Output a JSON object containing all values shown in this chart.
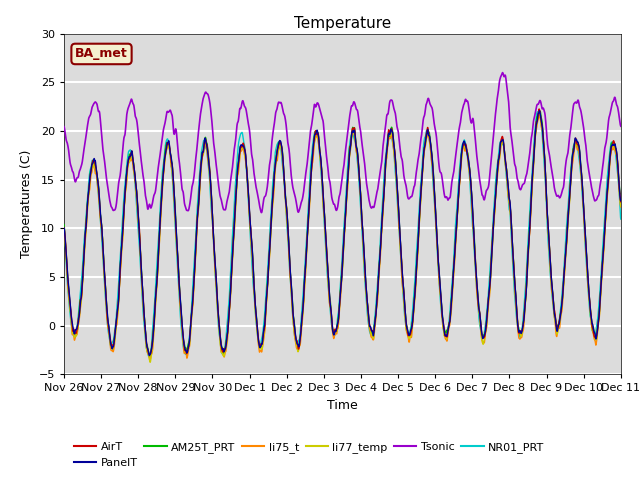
{
  "title": "Temperature",
  "xlabel": "Time",
  "ylabel": "Temperatures (C)",
  "ylim": [
    -5,
    30
  ],
  "annotation": "BA_met",
  "annotation_color": "#8B0000",
  "annotation_bg": "#F5F0D0",
  "background_color": "#DCDCDC",
  "grid_color": "white",
  "series": {
    "AirT": {
      "color": "#CC0000",
      "lw": 1.0,
      "zorder": 4
    },
    "PanelT": {
      "color": "#000099",
      "lw": 1.0,
      "zorder": 4
    },
    "AM25T_PRT": {
      "color": "#00BB00",
      "lw": 1.0,
      "zorder": 3
    },
    "li75_t": {
      "color": "#FF8800",
      "lw": 1.0,
      "zorder": 3
    },
    "li77_temp": {
      "color": "#CCCC00",
      "lw": 1.0,
      "zorder": 3
    },
    "Tsonic": {
      "color": "#9900CC",
      "lw": 1.2,
      "zorder": 5
    },
    "NR01_PRT": {
      "color": "#00CCCC",
      "lw": 1.0,
      "zorder": 2
    }
  },
  "tick_labels": [
    "Nov 26",
    "Nov 27",
    "Nov 28",
    "Nov 29",
    "Nov 30",
    "Dec 1",
    "Dec 2",
    "Dec 3",
    "Dec 4",
    "Dec 5",
    "Dec 6",
    "Dec 7",
    "Dec 8",
    "Dec 9",
    "Dec 10",
    "Dec 11"
  ],
  "yticks": [
    -5,
    0,
    5,
    10,
    15,
    20,
    25,
    30
  ]
}
